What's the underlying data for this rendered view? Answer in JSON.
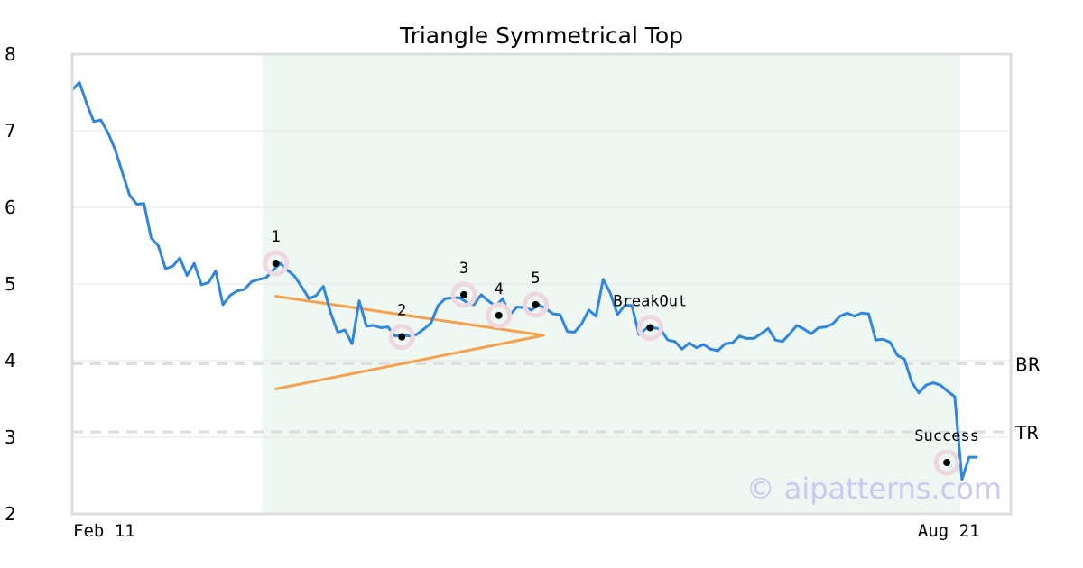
{
  "chart_data": {
    "type": "line",
    "title": "Triangle Symmetrical Top",
    "watermark": "© aipatterns.com",
    "ylim": [
      2,
      8
    ],
    "y_ticks": [
      "2",
      "3",
      "4",
      "5",
      "6",
      "7",
      "8"
    ],
    "x_ticks": [
      {
        "x": 0,
        "label": "Feb 11"
      },
      {
        "x": 226,
        "label": "Aug 21"
      }
    ],
    "xlim": [
      0,
      242
    ],
    "grid": true,
    "colors": {
      "price": "#2f86e0",
      "triangle": "#f5a04a",
      "highlight": "#eef7f2",
      "reference": "#dddddd",
      "marker_ring": "#efd7df",
      "marker_dot": "#000000",
      "frame": "#dddddd"
    },
    "highlight_range": [
      49,
      229
    ],
    "reference_lines": [
      {
        "label": "BR",
        "y": 3.96
      },
      {
        "label": "TR",
        "y": 3.07
      }
    ],
    "series": [
      {
        "values": [
          7.53,
          7.63,
          7.36,
          7.12,
          7.14,
          6.97,
          6.75,
          6.45,
          6.16,
          6.04,
          6.05,
          5.6,
          5.5,
          5.2,
          5.23,
          5.34,
          5.11,
          5.27,
          4.99,
          5.02,
          5.17,
          4.73,
          4.85,
          4.91,
          4.93,
          5.03,
          5.06,
          5.08,
          5.18,
          5.27,
          5.18,
          5.1,
          4.96,
          4.81,
          4.85,
          4.97,
          4.63,
          4.37,
          4.4,
          4.22,
          4.78,
          4.45,
          4.46,
          4.43,
          4.44,
          4.32,
          4.34,
          4.32,
          4.34,
          4.41,
          4.49,
          4.72,
          4.81,
          4.82,
          4.82,
          4.76,
          4.73,
          4.86,
          4.78,
          4.71,
          4.81,
          4.6,
          4.7,
          4.69,
          4.66,
          4.73,
          4.68,
          4.61,
          4.6,
          4.38,
          4.37,
          4.48,
          4.66,
          4.58,
          5.06,
          4.88,
          4.6,
          4.72,
          4.72,
          4.34,
          4.42,
          4.43,
          4.41,
          4.27,
          4.25,
          4.15,
          4.23,
          4.17,
          4.21,
          4.15,
          4.13,
          4.22,
          4.23,
          4.32,
          4.29,
          4.29,
          4.35,
          4.42,
          4.27,
          4.25,
          4.35,
          4.46,
          4.41,
          4.35,
          4.43,
          4.44,
          4.48,
          4.58,
          4.62,
          4.58,
          4.62,
          4.61,
          4.27,
          4.28,
          4.24,
          4.07,
          4.02,
          3.72,
          3.58,
          3.68,
          3.71,
          3.68,
          3.6,
          3.53,
          2.45,
          2.74,
          2.74
        ]
      }
    ],
    "series_x_start": 0,
    "series_x_step": 1.85,
    "triangle": {
      "upper": [
        [
          52.5,
          4.84
        ],
        [
          121.5,
          4.33
        ]
      ],
      "lower": [
        [
          52.5,
          3.63
        ],
        [
          121.5,
          4.33
        ]
      ]
    },
    "points": [
      {
        "label": "1",
        "x": 52.5,
        "y": 5.27,
        "label_pos": "above"
      },
      {
        "label": "2",
        "x": 85.0,
        "y": 4.31,
        "label_pos": "above"
      },
      {
        "label": "3",
        "x": 101.0,
        "y": 4.86,
        "label_pos": "above"
      },
      {
        "label": "4",
        "x": 110.0,
        "y": 4.59,
        "label_pos": "above"
      },
      {
        "label": "5",
        "x": 119.5,
        "y": 4.73,
        "label_pos": "above"
      },
      {
        "label": "BreakOut",
        "x": 149.0,
        "y": 4.43,
        "label_pos": "above"
      },
      {
        "label": "Success",
        "x": 225.5,
        "y": 2.67,
        "label_pos": "above"
      }
    ]
  }
}
